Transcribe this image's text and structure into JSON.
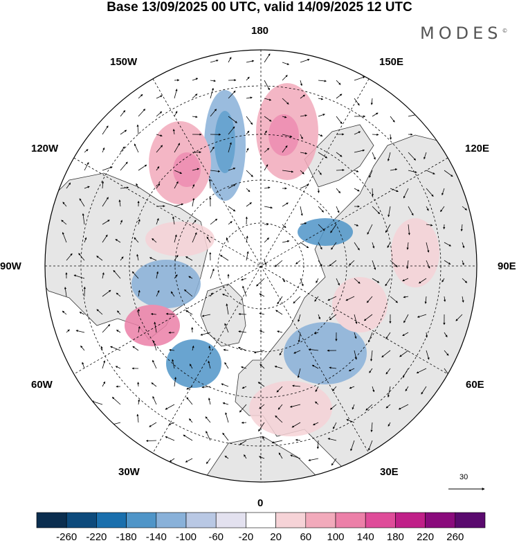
{
  "title": "Base 13/09/2025 00 UTC, valid 14/09/2025 12 UTC",
  "brand": "MODES",
  "brand_mark": "©",
  "longitude_labels": {
    "lon_180": "180",
    "lon_150E": "150E",
    "lon_120E": "120E",
    "lon_90E": "90E",
    "lon_60E": "60E",
    "lon_30E": "30E",
    "lon_0": "0",
    "lon_30W": "30W",
    "lon_60W": "60W",
    "lon_90W": "90W",
    "lon_120W": "120W",
    "lon_150W": "150W"
  },
  "vector_scale": {
    "label": "30"
  },
  "colorbar": {
    "colors": [
      "#0b2e4f",
      "#0d4a7c",
      "#1a6fad",
      "#4f95c8",
      "#89b1d9",
      "#b9c8e4",
      "#e3e1ef",
      "#ffffff",
      "#f6d3d7",
      "#f2aabb",
      "#ec80a8",
      "#df4c99",
      "#c02088",
      "#8a0b7c",
      "#5a0a6e"
    ],
    "labels": [
      "-260",
      "-220",
      "-180",
      "-140",
      "-100",
      "-60",
      "-20",
      "20",
      "60",
      "100",
      "140",
      "180",
      "220",
      "260"
    ]
  },
  "map_colors": {
    "land": "#e6e6e6",
    "ocean": "#ffffff",
    "coast": "#333333",
    "grid": "#000000"
  }
}
